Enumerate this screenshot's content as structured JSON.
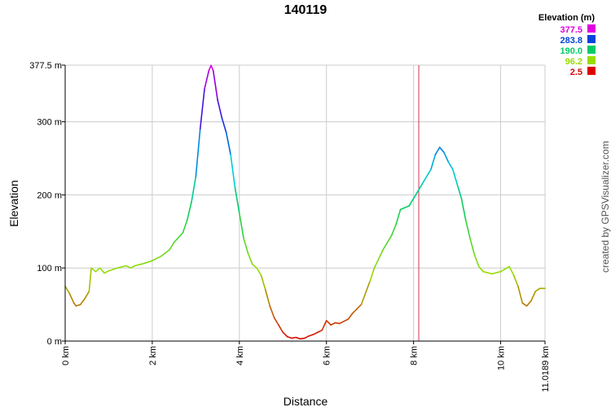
{
  "chart_data": {
    "type": "line",
    "title": "140119",
    "xlabel": "Distance",
    "ylabel": "Elevation",
    "xlim": [
      0,
      11.0189
    ],
    "ylim": [
      0,
      377.5
    ],
    "x_ticks": [
      {
        "value": 0,
        "label": "0 km"
      },
      {
        "value": 2,
        "label": "2 km"
      },
      {
        "value": 4,
        "label": "4 km"
      },
      {
        "value": 6,
        "label": "6 km"
      },
      {
        "value": 8,
        "label": "8 km"
      },
      {
        "value": 10,
        "label": "10 km"
      },
      {
        "value": 11.0189,
        "label": "11.0189 km"
      }
    ],
    "y_ticks": [
      {
        "value": 0,
        "label": "0 m"
      },
      {
        "value": 100,
        "label": "100 m"
      },
      {
        "value": 200,
        "label": "200 m"
      },
      {
        "value": 300,
        "label": "300 m"
      },
      {
        "value": 377.5,
        "label": "377.5 m"
      }
    ],
    "grid": true,
    "marker_x": 8.12,
    "legend": {
      "title": "Elevation (m)",
      "placement": "top-right",
      "items": [
        {
          "label": "377.5",
          "color": "#e000e0"
        },
        {
          "label": "283.8",
          "color": "#0044dd"
        },
        {
          "label": "190.0",
          "color": "#00cc66"
        },
        {
          "label": "96.2",
          "color": "#99dd00"
        },
        {
          "label": "2.5",
          "color": "#dd0000"
        }
      ]
    },
    "x": [
      0,
      0.1,
      0.2,
      0.25,
      0.35,
      0.45,
      0.55,
      0.6,
      0.7,
      0.8,
      0.9,
      1.0,
      1.2,
      1.4,
      1.5,
      1.6,
      1.8,
      2.0,
      2.2,
      2.4,
      2.5,
      2.7,
      2.8,
      2.9,
      3.0,
      3.1,
      3.2,
      3.3,
      3.35,
      3.4,
      3.5,
      3.6,
      3.7,
      3.8,
      3.9,
      4.0,
      4.1,
      4.2,
      4.3,
      4.4,
      4.5,
      4.6,
      4.7,
      4.8,
      4.9,
      5.0,
      5.1,
      5.2,
      5.3,
      5.4,
      5.5,
      5.6,
      5.7,
      5.8,
      5.9,
      6.0,
      6.1,
      6.2,
      6.3,
      6.5,
      6.6,
      6.8,
      7.0,
      7.1,
      7.3,
      7.5,
      7.6,
      7.7,
      7.9,
      8.0,
      8.1,
      8.2,
      8.4,
      8.5,
      8.6,
      8.7,
      8.8,
      8.9,
      9.0,
      9.1,
      9.2,
      9.3,
      9.4,
      9.5,
      9.6,
      9.8,
      10.0,
      10.2,
      10.3,
      10.4,
      10.5,
      10.6,
      10.7,
      10.8,
      10.9,
      11.0189
    ],
    "values": [
      75,
      65,
      52,
      48,
      50,
      58,
      68,
      100,
      95,
      100,
      93,
      96,
      100,
      103,
      100,
      103,
      106,
      110,
      116,
      125,
      135,
      148,
      165,
      190,
      225,
      290,
      345,
      370,
      377,
      370,
      330,
      305,
      285,
      255,
      210,
      175,
      140,
      120,
      105,
      100,
      90,
      70,
      48,
      32,
      22,
      12,
      6,
      4,
      5,
      3,
      4,
      7,
      9,
      12,
      15,
      28,
      22,
      25,
      24,
      30,
      38,
      50,
      82,
      100,
      125,
      145,
      160,
      180,
      185,
      195,
      205,
      215,
      235,
      255,
      265,
      258,
      245,
      235,
      215,
      195,
      165,
      140,
      118,
      102,
      95,
      92,
      95,
      102,
      90,
      75,
      52,
      48,
      55,
      68,
      72,
      72
    ]
  }
}
